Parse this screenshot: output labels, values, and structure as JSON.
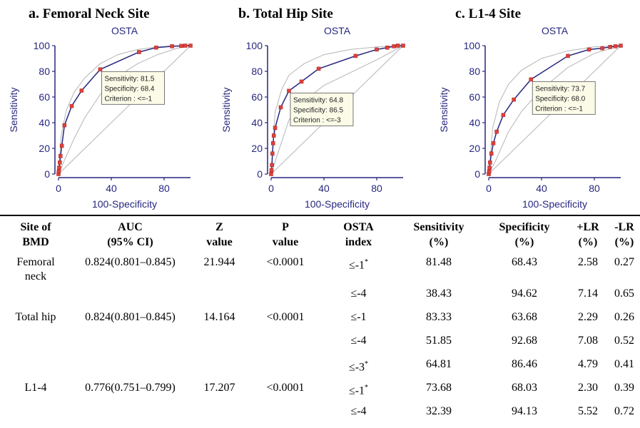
{
  "panels": [
    {
      "letter": "a.",
      "title": "Femoral Neck Site"
    },
    {
      "letter": "b.",
      "title": "Total Hip Site"
    },
    {
      "letter": "c.",
      "title": "L1-4 Site"
    }
  ],
  "chart_data": [
    {
      "type": "line",
      "title": "OSTA",
      "xlabel": "100-Specificity",
      "ylabel": "Sensitivity",
      "xlim": [
        0,
        100
      ],
      "ylim": [
        0,
        100
      ],
      "xticks": [
        0,
        40,
        80
      ],
      "yticks": [
        0,
        20,
        40,
        60,
        80,
        100
      ],
      "series": [
        {
          "x": [
            0,
            0.2,
            0.5,
            1,
            1.5,
            2.5,
            4.5,
            10,
            17.5,
            31.6,
            61,
            74,
            86,
            93,
            96,
            100
          ],
          "y": [
            0,
            2,
            5,
            9,
            14,
            22,
            38,
            53,
            65,
            81.5,
            95,
            98.5,
            99.5,
            99.8,
            100,
            100
          ]
        }
      ],
      "ci_upper": {
        "x": [
          0,
          2,
          6,
          12,
          20,
          31.6,
          45,
          60,
          75,
          90,
          100
        ],
        "y": [
          0,
          30,
          50,
          64,
          75,
          86,
          93,
          97,
          99,
          100,
          100
        ]
      },
      "ci_lower": {
        "x": [
          0,
          5,
          12,
          20,
          31.6,
          45,
          60,
          75,
          90,
          100
        ],
        "y": [
          0,
          12,
          28,
          44,
          62,
          76,
          86,
          93,
          98,
          100
        ]
      },
      "annotation": {
        "lines": [
          "Sensitivity: 81.5",
          "Specificity: 68.4",
          "Criterion : <=-1"
        ],
        "point": [
          31.6,
          81.5
        ]
      }
    },
    {
      "type": "line",
      "title": "OSTA",
      "xlabel": "100-Specificity",
      "ylabel": "Sensitivity",
      "xlim": [
        0,
        100
      ],
      "ylim": [
        0,
        100
      ],
      "xticks": [
        0,
        40,
        80
      ],
      "yticks": [
        0,
        20,
        40,
        60,
        80,
        100
      ],
      "series": [
        {
          "x": [
            0,
            0.3,
            0.6,
            1,
            1.5,
            2,
            3,
            7.3,
            13.5,
            23,
            36,
            64,
            80,
            88,
            93,
            96,
            100
          ],
          "y": [
            0,
            3,
            7,
            16,
            24,
            30,
            36,
            52,
            64.8,
            72,
            82,
            92,
            97,
            98.5,
            99.5,
            100,
            100
          ]
        }
      ],
      "ci_upper": {
        "x": [
          0,
          3,
          8,
          13.5,
          25,
          40,
          60,
          80,
          100
        ],
        "y": [
          0,
          48,
          66,
          77,
          86,
          93,
          97,
          99,
          100
        ]
      },
      "ci_lower": {
        "x": [
          0,
          5,
          13.5,
          25,
          40,
          60,
          80,
          100
        ],
        "y": [
          0,
          16,
          42,
          57,
          69,
          79,
          89,
          100
        ]
      },
      "annotation": {
        "lines": [
          "Sensitivity: 64.8",
          "Specificity: 86.5",
          "Criterion : <=-3"
        ],
        "point": [
          13.5,
          64.8
        ]
      }
    },
    {
      "type": "line",
      "title": "OSTA",
      "xlabel": "100-Specificity",
      "ylabel": "Sensitivity",
      "xlim": [
        0,
        100
      ],
      "ylim": [
        0,
        100
      ],
      "xticks": [
        0,
        40,
        80
      ],
      "yticks": [
        0,
        20,
        40,
        60,
        80,
        100
      ],
      "series": [
        {
          "x": [
            0,
            0.3,
            0.6,
            1,
            2,
            3.5,
            6,
            11,
            19,
            32,
            60,
            76,
            86,
            92,
            96,
            100
          ],
          "y": [
            0,
            2,
            5,
            9,
            16,
            24,
            33,
            46,
            58,
            73.7,
            92,
            97,
            98,
            99,
            99.5,
            100
          ]
        }
      ],
      "ci_upper": {
        "x": [
          0,
          3,
          8,
          15,
          25,
          40,
          60,
          80,
          100
        ],
        "y": [
          0,
          36,
          56,
          70,
          81,
          90,
          96,
          99,
          100
        ]
      },
      "ci_lower": {
        "x": [
          0,
          5,
          15,
          25,
          40,
          60,
          80,
          100
        ],
        "y": [
          0,
          10,
          33,
          49,
          66,
          83,
          94,
          100
        ]
      },
      "annotation": {
        "lines": [
          "Sensitivity: 73.7",
          "Specificity: 68.0",
          "Criterion : <=-1"
        ],
        "point": [
          32,
          73.7
        ]
      }
    }
  ],
  "table": {
    "headers": [
      [
        "Site of",
        "BMD"
      ],
      [
        "AUC",
        "(95% CI)"
      ],
      [
        "Z",
        "value"
      ],
      [
        "P",
        "value"
      ],
      [
        "OSTA",
        "index"
      ],
      [
        "Sensitivity",
        "(%)"
      ],
      [
        "Specificity",
        "(%)"
      ],
      [
        "+LR",
        "(%)"
      ],
      [
        "-LR",
        "(%)"
      ]
    ],
    "rows": [
      {
        "site": "Femoral neck",
        "auc": "0.824(0.801–0.845)",
        "z": "21.944",
        "p": "<0.0001",
        "index": "≤-1",
        "star": "*",
        "sens": "81.48",
        "spec": "68.43",
        "plr": "2.58",
        "nlr": "0.27"
      },
      {
        "site": "",
        "auc": "",
        "z": "",
        "p": "",
        "index": "≤-4",
        "star": "",
        "sens": "38.43",
        "spec": "94.62",
        "plr": "7.14",
        "nlr": "0.65"
      },
      {
        "site": "Total hip",
        "auc": "0.824(0.801–0.845)",
        "z": "14.164",
        "p": "<0.0001",
        "index": "≤-1",
        "star": "",
        "sens": "83.33",
        "spec": "63.68",
        "plr": "2.29",
        "nlr": "0.26"
      },
      {
        "site": "",
        "auc": "",
        "z": "",
        "p": "",
        "index": "≤-4",
        "star": "",
        "sens": "51.85",
        "spec": "92.68",
        "plr": "7.08",
        "nlr": "0.52"
      },
      {
        "site": "",
        "auc": "",
        "z": "",
        "p": "",
        "index": "≤-3",
        "star": "*",
        "sens": "64.81",
        "spec": "86.46",
        "plr": "4.79",
        "nlr": "0.41"
      },
      {
        "site": "L1-4",
        "auc": "0.776(0.751–0.799)",
        "z": "17.207",
        "p": "<0.0001",
        "index": "≤-1",
        "star": "*",
        "sens": "73.68",
        "spec": "68.03",
        "plr": "2.30",
        "nlr": "0.39"
      },
      {
        "site": "",
        "auc": "",
        "z": "",
        "p": "",
        "index": "≤-4",
        "star": "",
        "sens": "32.39",
        "spec": "94.13",
        "plr": "5.52",
        "nlr": "0.72"
      }
    ]
  }
}
